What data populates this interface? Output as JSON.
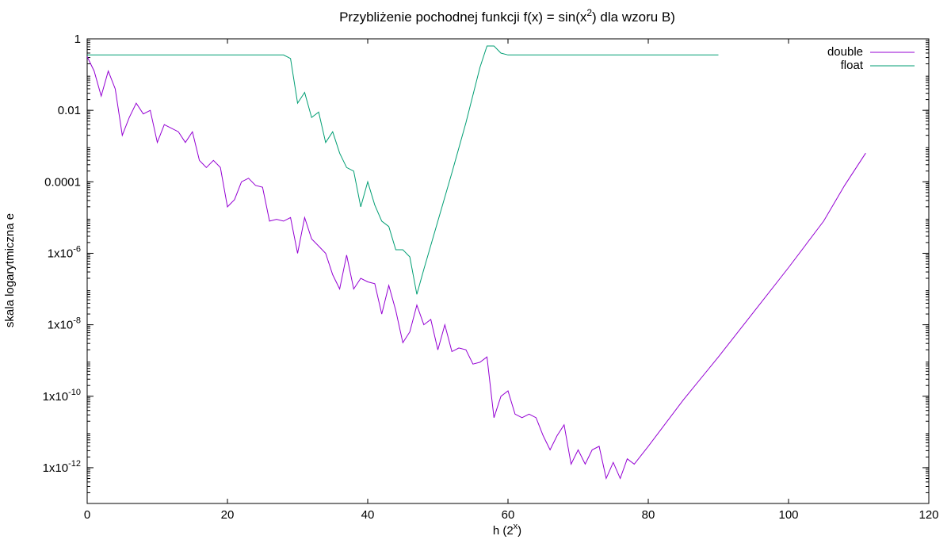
{
  "chart_data": {
    "type": "line",
    "title": {
      "main": "Przybliżenie pochodnej funkcji f(x) = sin(x",
      "sup": "2",
      "tail": ") dla wzoru B)"
    },
    "xlabel": {
      "main": "h (2",
      "sup": "x",
      "tail": ")"
    },
    "ylabel": "skala logarytmiczna e",
    "xlim": [
      0,
      120
    ],
    "ylog": true,
    "ylim_exp": [
      -13,
      0
    ],
    "grid": false,
    "legend_position": "top-right",
    "x_ticks": [
      {
        "value": 0,
        "label": "0"
      },
      {
        "value": 20,
        "label": "20"
      },
      {
        "value": 40,
        "label": "40"
      },
      {
        "value": 60,
        "label": "60"
      },
      {
        "value": 80,
        "label": "80"
      },
      {
        "value": 100,
        "label": "100"
      },
      {
        "value": 120,
        "label": "120"
      }
    ],
    "y_ticks": [
      {
        "exp": 0,
        "label": "1"
      },
      {
        "exp": -2,
        "label": "0.01"
      },
      {
        "exp": -4,
        "label": "0.0001"
      },
      {
        "exp": -6,
        "label": "1x10",
        "sup": "-6"
      },
      {
        "exp": -8,
        "label": "1x10",
        "sup": "-8"
      },
      {
        "exp": -10,
        "label": "1x10",
        "sup": "-10"
      },
      {
        "exp": -12,
        "label": "1x10",
        "sup": "-12"
      }
    ],
    "series": [
      {
        "name": "double",
        "color": "#9400d3",
        "x": [
          0,
          1,
          2,
          3,
          4,
          5,
          6,
          7,
          8,
          9,
          10,
          11,
          12,
          13,
          14,
          15,
          16,
          17,
          18,
          19,
          20,
          21,
          22,
          23,
          24,
          25,
          26,
          27,
          28,
          29,
          30,
          31,
          32,
          33,
          34,
          35,
          36,
          37,
          38,
          39,
          40,
          41,
          42,
          43,
          44,
          45,
          46,
          47,
          48,
          49,
          50,
          51,
          52,
          53,
          54,
          55,
          56,
          57,
          58,
          59,
          60,
          61,
          62,
          63,
          64,
          65,
          66,
          67,
          68,
          69,
          70,
          71,
          72,
          73,
          74,
          75,
          76,
          77,
          78,
          80,
          85,
          90,
          95,
          100,
          105,
          108,
          111
        ],
        "y_exp": [
          -0.5,
          -0.9,
          -1.6,
          -0.9,
          -1.4,
          -2.7,
          -2.2,
          -1.8,
          -2.1,
          -2.0,
          -2.9,
          -2.4,
          -2.5,
          -2.6,
          -2.9,
          -2.6,
          -3.4,
          -3.6,
          -3.4,
          -3.6,
          -4.7,
          -4.5,
          -4.0,
          -3.9,
          -4.1,
          -4.15,
          -5.1,
          -5.05,
          -5.1,
          -5.0,
          -6.0,
          -5.0,
          -5.6,
          -5.8,
          -6.0,
          -6.6,
          -7.0,
          -6.05,
          -7.0,
          -6.7,
          -6.8,
          -6.85,
          -7.7,
          -6.9,
          -7.6,
          -8.5,
          -8.2,
          -7.45,
          -8.0,
          -7.85,
          -8.7,
          -8.0,
          -8.75,
          -8.65,
          -8.7,
          -9.1,
          -9.05,
          -8.9,
          -10.6,
          -10.0,
          -9.85,
          -10.5,
          -10.6,
          -10.5,
          -10.6,
          -11.1,
          -11.5,
          -11.1,
          -10.8,
          -11.9,
          -11.5,
          -11.9,
          -11.5,
          -11.4,
          -12.3,
          -11.85,
          -12.3,
          -11.75,
          -11.9,
          -11.4,
          -10.1,
          -8.9,
          -7.65,
          -6.4,
          -5.1,
          -4.1,
          -3.2
        ]
      },
      {
        "name": "float",
        "color": "#009e73",
        "x": [
          0,
          1,
          5,
          10,
          15,
          20,
          25,
          27,
          28,
          29,
          30,
          31,
          32,
          33,
          34,
          35,
          36,
          37,
          38,
          39,
          40,
          41,
          42,
          43,
          44,
          45,
          46,
          47,
          48,
          50,
          52,
          54,
          56,
          57,
          58,
          59,
          60,
          65,
          70,
          75,
          80,
          85,
          90
        ],
        "y_exp": [
          -0.45,
          -0.45,
          -0.45,
          -0.45,
          -0.45,
          -0.45,
          -0.45,
          -0.45,
          -0.45,
          -0.55,
          -1.8,
          -1.5,
          -2.2,
          -2.05,
          -2.9,
          -2.6,
          -3.2,
          -3.6,
          -3.7,
          -4.7,
          -4.0,
          -4.65,
          -5.1,
          -5.25,
          -5.9,
          -5.9,
          -6.1,
          -7.15,
          -6.45,
          -5.1,
          -3.75,
          -2.35,
          -0.8,
          -0.2,
          -0.2,
          -0.4,
          -0.45,
          -0.45,
          -0.45,
          -0.45,
          -0.45,
          -0.45,
          -0.45
        ]
      }
    ]
  }
}
